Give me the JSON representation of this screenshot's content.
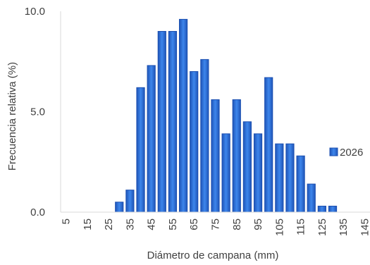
{
  "chart_data": {
    "type": "bar",
    "xlabel": "Diámetro de campana (mm)",
    "ylabel": "Frecuencia relativa (%)",
    "ylim": [
      0,
      10
    ],
    "yticks": [
      "0.0",
      "5.0",
      "10.0"
    ],
    "ytick_values": [
      0,
      5,
      10
    ],
    "grid": false,
    "legend_position": "right",
    "x_tick_labels": [
      "5",
      "15",
      "25",
      "35",
      "45",
      "55",
      "65",
      "75",
      "85",
      "95",
      "105",
      "115",
      "125",
      "135",
      "145"
    ],
    "categories": [
      "5",
      "10",
      "15",
      "20",
      "25",
      "30",
      "35",
      "40",
      "45",
      "50",
      "55",
      "60",
      "65",
      "70",
      "75",
      "80",
      "85",
      "90",
      "95",
      "100",
      "105",
      "110",
      "115",
      "120",
      "125",
      "130",
      "135",
      "140",
      "145"
    ],
    "series": [
      {
        "name": "2026",
        "color": "#2E6FD8",
        "values": [
          0,
          0,
          0,
          0,
          0,
          0.5,
          1.1,
          6.2,
          7.3,
          9.0,
          9.0,
          9.6,
          7.0,
          7.6,
          5.6,
          3.9,
          5.6,
          4.5,
          3.9,
          6.7,
          3.4,
          3.4,
          2.8,
          1.4,
          0.3,
          0.3,
          0,
          0,
          0
        ]
      }
    ]
  }
}
